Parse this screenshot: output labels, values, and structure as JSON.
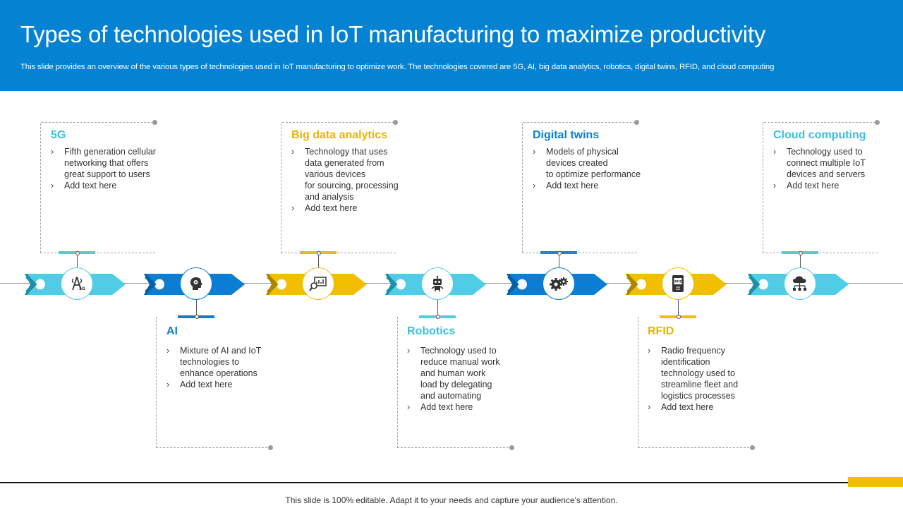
{
  "header": {
    "title": "Types of technologies used in IoT manufacturing to maximize productivity",
    "subtitle": "This slide provides an overview of the various types of technologies used in IoT manufacturing to optimize work. The technologies covered are 5G, AI,  big data analytics, robotics, digital twins, RFID, and cloud computing"
  },
  "colors": {
    "header_bg": "#0582d2",
    "light_blue": "#4fcde6",
    "blue": "#0a7ed4",
    "yellow": "#f2be00",
    "footer_accent": "#f2be00"
  },
  "technologies": [
    {
      "title": "5G",
      "color": "#4fcde6",
      "icon": "5g-tower-icon",
      "bullets": [
        "Fifth generation cellular\nnetworking that offers\ngreat support to users",
        "Add text here"
      ]
    },
    {
      "title": "AI",
      "color": "#0a7ed4",
      "icon": "ai-head-icon",
      "bullets": [
        "Mixture of AI and IoT\ntechnologies to\nenhance operations",
        "Add text here"
      ]
    },
    {
      "title": "Big data analytics",
      "color": "#f2be00",
      "icon": "analytics-magnifier-icon",
      "bullets": [
        "Technology that uses\ndata generated from\nvarious devices\nfor sourcing, processing\nand analysis",
        "Add text here"
      ]
    },
    {
      "title": "Robotics",
      "color": "#4fcde6",
      "icon": "robot-icon",
      "bullets": [
        "Technology used to\nreduce manual work\nand human work\nload by delegating\nand automating",
        "Add text here"
      ]
    },
    {
      "title": "Digital twins",
      "color": "#0a7ed4",
      "icon": "gears-icon",
      "bullets": [
        "Models of physical\ndevices created\nto optimize performance",
        "Add text here"
      ]
    },
    {
      "title": "RFID",
      "color": "#f2be00",
      "icon": "rfid-tag-icon",
      "bullets": [
        "Radio frequency\nidentification\ntechnology used to\nstreamline fleet and\nlogistics processes",
        "Add text here"
      ]
    },
    {
      "title": "Cloud computing",
      "color": "#4fcde6",
      "icon": "cloud-network-icon",
      "bullets": [
        "Technology used to\nconnect multiple IoT\ndevices and servers",
        "Add text here"
      ]
    }
  ],
  "footer": {
    "text": "This slide is 100% editable. Adapt it to your needs and capture your audience's attention."
  }
}
